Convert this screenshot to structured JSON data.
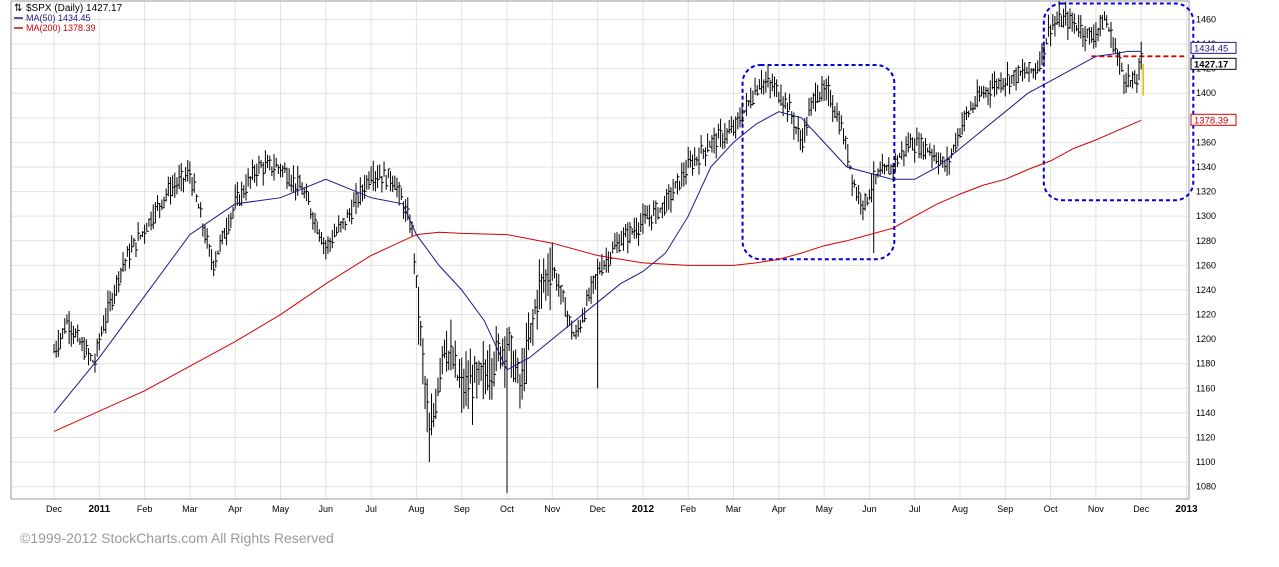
{
  "chart_data": {
    "type": "line",
    "title": "$SPX (Daily) 1427.17",
    "title_icon": "ohlc-bars-icon",
    "legend": [
      {
        "name": "MA(50) 1434.45",
        "color": "#1a1a8c"
      },
      {
        "name": "MA(200) 1378.39",
        "color": "#d40000"
      }
    ],
    "legend_placement": "top-left",
    "y_axis": {
      "side": "right",
      "ylim": [
        1070,
        1475
      ],
      "ticks": [
        1080,
        1100,
        1120,
        1140,
        1160,
        1180,
        1200,
        1220,
        1240,
        1260,
        1280,
        1300,
        1320,
        1340,
        1360,
        1380,
        1400,
        1420,
        1440,
        1460
      ],
      "grid": true
    },
    "x_axis": {
      "ticks": [
        "Dec",
        "2011",
        "Feb",
        "Mar",
        "Apr",
        "May",
        "Jun",
        "Jul",
        "Aug",
        "Sep",
        "Oct",
        "Nov",
        "Dec",
        "2012",
        "Feb",
        "Mar",
        "Apr",
        "May",
        "Jun",
        "Jul",
        "Aug",
        "Sep",
        "Oct",
        "Nov",
        "Dec",
        "2013"
      ],
      "bold_ticks": [
        "2011",
        "2012",
        "2013"
      ],
      "grid": true
    },
    "value_flags": [
      {
        "text": "1434.45",
        "value": 1434.45,
        "color": "#1a1a8c",
        "bold": false
      },
      {
        "text": "1427.17",
        "value": 1427.17,
        "color": "#000000",
        "bold": true
      },
      {
        "text": "1378.39",
        "value": 1378.39,
        "color": "#d40000",
        "bold": false
      }
    ],
    "annotations": [
      {
        "type": "dashed-box",
        "color": "#0000e0",
        "x_months": [
          15.2,
          18.55
        ],
        "y": [
          1265,
          1423
        ]
      },
      {
        "type": "dashed-box",
        "color": "#0000e0",
        "x_months": [
          21.85,
          25.15
        ],
        "y": [
          1313,
          1473
        ]
      },
      {
        "type": "dashed-line",
        "color": "#e00000",
        "x_months": [
          22.9,
          24.95
        ],
        "y": 1430
      }
    ],
    "series": [
      {
        "name": "$SPX",
        "type": "ohlc",
        "color": "#000000",
        "x_months": [
          0.0,
          0.3,
          0.6,
          0.9,
          1.0,
          1.5,
          2.0,
          2.5,
          3.0,
          3.3,
          3.5,
          4.0,
          4.5,
          5.0,
          5.5,
          6.0,
          6.5,
          7.0,
          7.5,
          7.9,
          8.1,
          8.3,
          8.6,
          9.0,
          9.5,
          10.0,
          10.3,
          10.7,
          11.0,
          11.5,
          12.0,
          12.5,
          13.0,
          13.5,
          14.0,
          14.5,
          15.0,
          15.3,
          15.6,
          15.9,
          16.2,
          16.5,
          16.8,
          17.1,
          17.4,
          17.7,
          17.9,
          18.1,
          18.5,
          18.9,
          19.3,
          19.7,
          20.1,
          20.5,
          20.9,
          21.3,
          21.7,
          22.0,
          22.3,
          22.6,
          22.9,
          23.2,
          23.4,
          23.6,
          23.8,
          23.9,
          24.0
        ],
        "values": [
          1190,
          1215,
          1195,
          1180,
          1200,
          1260,
          1290,
          1320,
          1335,
          1290,
          1260,
          1310,
          1340,
          1340,
          1320,
          1275,
          1300,
          1335,
          1330,
          1290,
          1200,
          1115,
          1200,
          1160,
          1170,
          1200,
          1160,
          1240,
          1260,
          1200,
          1255,
          1280,
          1295,
          1310,
          1340,
          1360,
          1370,
          1390,
          1410,
          1405,
          1390,
          1360,
          1400,
          1400,
          1370,
          1320,
          1310,
          1330,
          1340,
          1360,
          1355,
          1340,
          1380,
          1400,
          1410,
          1415,
          1420,
          1455,
          1460,
          1455,
          1445,
          1460,
          1440,
          1415,
          1408,
          1410,
          1427
        ],
        "low_spikes": [
          {
            "x": 10.0,
            "low": 1075
          },
          {
            "x": 8.3,
            "low": 1100
          },
          {
            "x": 12.0,
            "low": 1160
          },
          {
            "x": 18.1,
            "low": 1270
          }
        ]
      },
      {
        "name": "MA(50)",
        "color": "#1a1a8c",
        "x_months": [
          0.0,
          1.0,
          2.0,
          3.0,
          4.0,
          5.0,
          6.0,
          7.0,
          7.7,
          8.0,
          8.5,
          9.0,
          9.5,
          10.0,
          10.5,
          11.0,
          11.5,
          12.0,
          12.5,
          13.0,
          13.5,
          14.0,
          14.5,
          15.0,
          15.5,
          16.0,
          16.5,
          17.0,
          17.5,
          18.0,
          18.5,
          19.0,
          19.5,
          20.0,
          20.5,
          21.0,
          21.5,
          22.0,
          22.5,
          23.0,
          23.4,
          23.7,
          24.0
        ],
        "values": [
          1140,
          1185,
          1235,
          1285,
          1310,
          1315,
          1330,
          1315,
          1310,
          1285,
          1260,
          1240,
          1215,
          1175,
          1185,
          1200,
          1215,
          1230,
          1245,
          1255,
          1270,
          1300,
          1340,
          1360,
          1375,
          1385,
          1380,
          1360,
          1340,
          1335,
          1330,
          1330,
          1340,
          1355,
          1370,
          1385,
          1400,
          1410,
          1420,
          1430,
          1432,
          1434,
          1434
        ]
      },
      {
        "name": "MA(200)",
        "color": "#d40000",
        "x_months": [
          0.0,
          2.0,
          4.0,
          5.0,
          6.0,
          7.0,
          8.0,
          8.5,
          9.0,
          10.0,
          11.0,
          12.0,
          13.0,
          14.0,
          15.0,
          15.5,
          16.0,
          16.5,
          17.0,
          17.5,
          18.0,
          18.5,
          19.0,
          19.5,
          20.0,
          20.5,
          21.0,
          21.5,
          22.0,
          22.5,
          23.0,
          23.5,
          24.0
        ],
        "values": [
          1125,
          1158,
          1198,
          1220,
          1245,
          1268,
          1285,
          1287,
          1286,
          1285,
          1278,
          1268,
          1262,
          1260,
          1260,
          1262,
          1265,
          1270,
          1276,
          1280,
          1285,
          1290,
          1300,
          1310,
          1318,
          1325,
          1330,
          1338,
          1345,
          1355,
          1362,
          1370,
          1378
        ]
      }
    ]
  },
  "copyright": "©1999-2012 StockCharts.com All Rights Reserved"
}
